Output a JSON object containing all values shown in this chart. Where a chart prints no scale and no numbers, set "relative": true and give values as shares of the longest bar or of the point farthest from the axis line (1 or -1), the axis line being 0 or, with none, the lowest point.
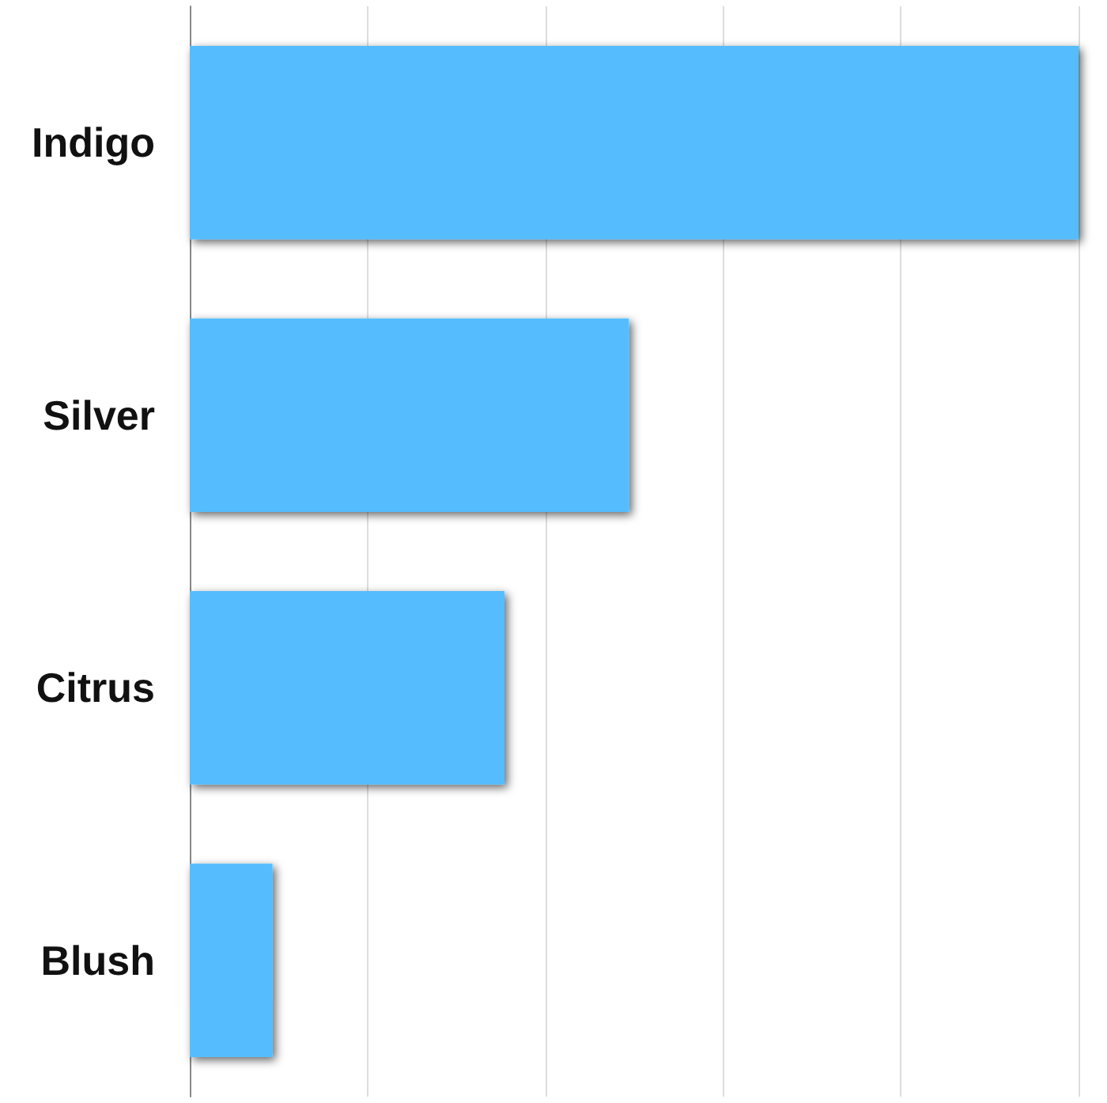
{
  "chart_data": {
    "type": "bar",
    "orientation": "horizontal",
    "relative": true,
    "categories": [
      "Indigo",
      "Silver",
      "Citrus",
      "Blush"
    ],
    "values": [
      1,
      0.494,
      0.354,
      0.093
    ],
    "color": "#55bdfe",
    "grid": "x"
  }
}
